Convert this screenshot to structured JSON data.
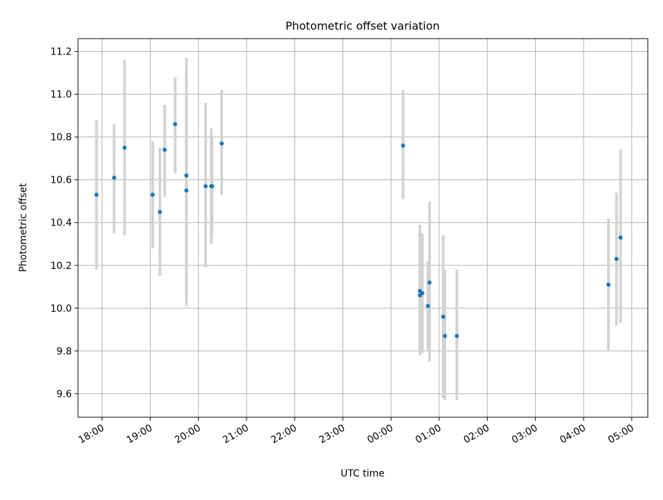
{
  "chart_data": {
    "type": "scatter",
    "title": "Photometric offset variation",
    "xlabel": "UTC time",
    "ylabel": "Photometric offset",
    "x_axis_kind": "time",
    "xlim": [
      "17:30",
      "05:20"
    ],
    "ylim": [
      9.49,
      11.26
    ],
    "grid": true,
    "x_ticks": [
      "18:00",
      "19:00",
      "20:00",
      "21:00",
      "22:00",
      "23:00",
      "00:00",
      "01:00",
      "02:00",
      "03:00",
      "04:00",
      "05:00"
    ],
    "y_ticks": [
      "9.6",
      "9.8",
      "10.0",
      "10.2",
      "10.4",
      "10.6",
      "10.8",
      "11.0",
      "11.2"
    ],
    "colors": {
      "points": "#1f77b4",
      "errorbars": "#d3d3d3",
      "grid": "#b0b0b0"
    },
    "points": [
      {
        "x": "17:53",
        "y": 10.53,
        "ylo": 10.18,
        "yhi": 10.88
      },
      {
        "x": "18:15",
        "y": 10.61,
        "ylo": 10.35,
        "yhi": 10.86
      },
      {
        "x": "18:28",
        "y": 10.75,
        "ylo": 10.34,
        "yhi": 11.16
      },
      {
        "x": "19:03",
        "y": 10.53,
        "ylo": 10.28,
        "yhi": 10.78
      },
      {
        "x": "19:12",
        "y": 10.45,
        "ylo": 10.15,
        "yhi": 10.75
      },
      {
        "x": "19:18",
        "y": 10.74,
        "ylo": 10.52,
        "yhi": 10.95
      },
      {
        "x": "19:31",
        "y": 10.86,
        "ylo": 10.63,
        "yhi": 11.08
      },
      {
        "x": "19:45",
        "y": 10.62,
        "ylo": 10.07,
        "yhi": 11.17
      },
      {
        "x": "19:45",
        "y": 10.55,
        "ylo": 10.01,
        "yhi": 11.09
      },
      {
        "x": "20:09",
        "y": 10.57,
        "ylo": 10.19,
        "yhi": 10.96
      },
      {
        "x": "20:16",
        "y": 10.57,
        "ylo": 10.3,
        "yhi": 10.84
      },
      {
        "x": "20:17",
        "y": 10.57,
        "ylo": 10.35,
        "yhi": 10.8
      },
      {
        "x": "20:29",
        "y": 10.77,
        "ylo": 10.53,
        "yhi": 11.02
      },
      {
        "x": "00:15",
        "y": 10.76,
        "ylo": 10.51,
        "yhi": 11.02
      },
      {
        "x": "00:36",
        "y": 10.08,
        "ylo": 9.78,
        "yhi": 10.39
      },
      {
        "x": "00:36",
        "y": 10.06,
        "ylo": 9.79,
        "yhi": 10.34
      },
      {
        "x": "00:39",
        "y": 10.07,
        "ylo": 9.79,
        "yhi": 10.35
      },
      {
        "x": "00:46",
        "y": 10.01,
        "ylo": 9.8,
        "yhi": 10.22
      },
      {
        "x": "00:48",
        "y": 10.12,
        "ylo": 9.75,
        "yhi": 10.5
      },
      {
        "x": "01:05",
        "y": 9.96,
        "ylo": 9.58,
        "yhi": 10.34
      },
      {
        "x": "01:07",
        "y": 9.87,
        "ylo": 9.57,
        "yhi": 10.18
      },
      {
        "x": "01:22",
        "y": 9.87,
        "ylo": 9.57,
        "yhi": 10.18
      },
      {
        "x": "04:31",
        "y": 10.11,
        "ylo": 9.8,
        "yhi": 10.42
      },
      {
        "x": "04:41",
        "y": 10.23,
        "ylo": 9.92,
        "yhi": 10.54
      },
      {
        "x": "04:46",
        "y": 10.33,
        "ylo": 9.93,
        "yhi": 10.74
      }
    ]
  }
}
